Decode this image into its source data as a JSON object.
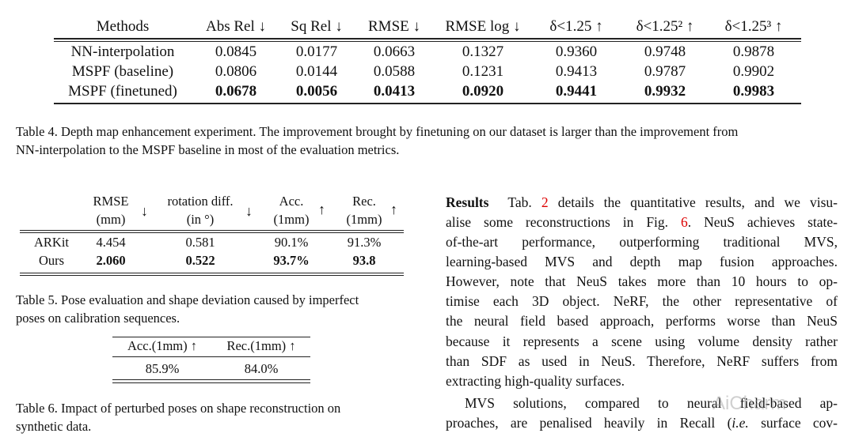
{
  "table4": {
    "headers": [
      "Methods",
      "Abs Rel ↓",
      "Sq Rel ↓",
      "RMSE ↓",
      "RMSE log ↓",
      "δ<1.25 ↑",
      "δ<1.25² ↑",
      "δ<1.25³ ↑"
    ],
    "rows": [
      [
        "NN-interpolation",
        "0.0845",
        "0.0177",
        "0.0663",
        "0.1327",
        "0.9360",
        "0.9748",
        "0.9878"
      ],
      [
        "MSPF (baseline)",
        "0.0806",
        "0.0144",
        "0.0588",
        "0.1231",
        "0.9413",
        "0.9787",
        "0.9902"
      ],
      [
        "MSPF (finetuned)",
        "0.0678",
        "0.0056",
        "0.0413",
        "0.0920",
        "0.9441",
        "0.9932",
        "0.9983"
      ]
    ],
    "caption_lines": [
      "Table 4. Depth map enhancement experiment. The improvement brought by finetuning on our dataset is larger than the improvement from",
      "NN-interpolation to the MSPF baseline in most of the evaluation metrics."
    ]
  },
  "table5": {
    "headers": [
      {
        "l1": "RMSE",
        "l2": "(mm)",
        "arrow": "↓"
      },
      {
        "l1": "rotation diff.",
        "l2": "(in °)",
        "arrow": "↓"
      },
      {
        "l1": "Acc.",
        "l2": "(1mm)",
        "arrow": "↑"
      },
      {
        "l1": "Rec.",
        "l2": "(1mm)",
        "arrow": "↑"
      }
    ],
    "rows": [
      [
        "ARKit",
        "4.454",
        "0.581",
        "90.1%",
        "91.3%"
      ],
      [
        "Ours",
        "2.060",
        "0.522",
        "93.7%",
        "93.8"
      ]
    ],
    "caption_lines": [
      "Table 5. Pose evaluation and shape deviation caused by imperfect",
      "poses on calibration sequences."
    ]
  },
  "table6": {
    "headers": [
      "Acc.(1mm) ↑",
      "Rec.(1mm) ↑"
    ],
    "row": [
      "85.9%",
      "84.0%"
    ],
    "caption_lines": [
      "Table 6.  Impact of perturbed poses on shape reconstruction on",
      "synthetic data."
    ]
  },
  "body": {
    "heading": "Results",
    "l1_a": "Tab. ",
    "l1_ref": "2",
    "l1_b": " details the quantitative results, and we visu-",
    "l2_a": "alise some reconstructions in Fig. ",
    "l2_ref": "6",
    "l2_b": ". NeuS achieves state-",
    "lines": [
      "of-the-art performance, outperforming traditional MVS,",
      "learning-based MVS and depth map fusion approaches.",
      "However, note that NeuS takes more than 10 hours to op-",
      "timise each 3D object.  NeRF, the other representative of",
      "the neural field based approach, performs worse than NeuS",
      "because it represents a scene using volume density rather",
      "than SDF as used in NeuS. Therefore, NeRF suffers from",
      "extracting high-quality surfaces."
    ],
    "p2_l1": "MVS solutions, compared to neural field-based ap-",
    "p2_l2_a": "proaches, are penalised heavily in Recall (",
    "p2_l2_i": "i.e.",
    "p2_l2_b": " surface cov-"
  },
  "watermark": "AiCharm"
}
